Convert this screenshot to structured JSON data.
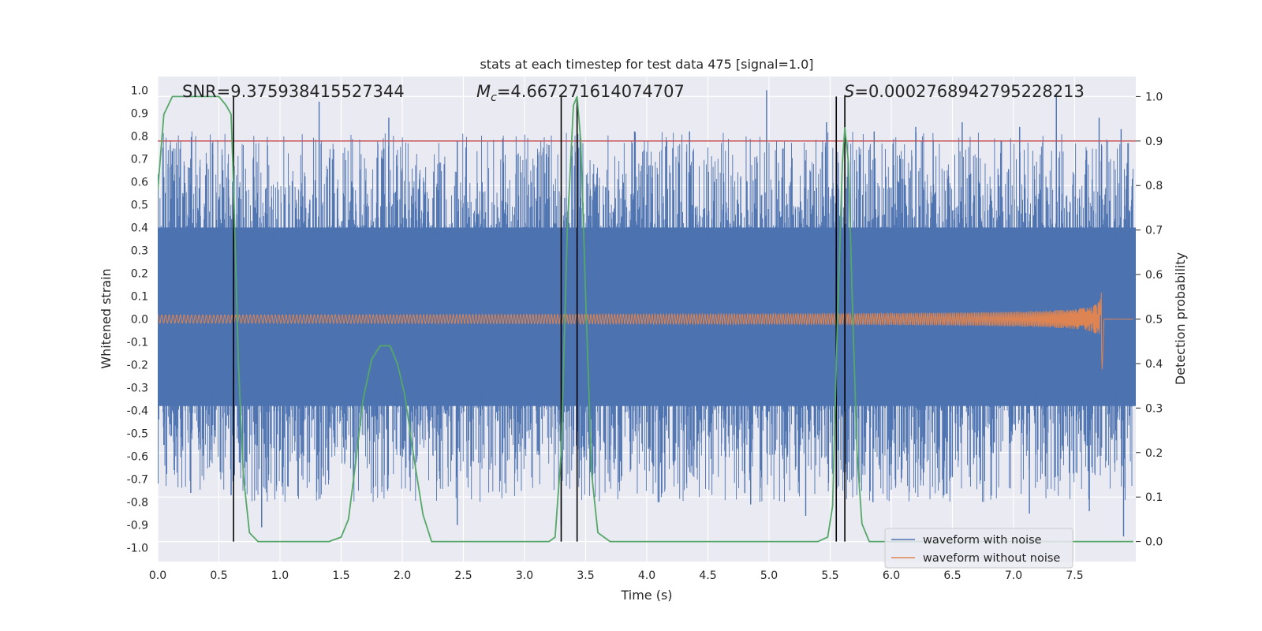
{
  "chart_data": {
    "type": "line",
    "title": "stats at each timestep for test data 475 [signal=1.0]",
    "xlabel": "Time (s)",
    "ylabel": "Whitened strain",
    "ylabel_right": "Detection probability",
    "xlim": [
      0.0,
      8.0
    ],
    "ylim": [
      -1.06,
      1.06
    ],
    "ylim_right": [
      -0.045,
      1.045
    ],
    "xticks": [
      0.0,
      0.5,
      1.0,
      1.5,
      2.0,
      2.5,
      3.0,
      3.5,
      4.0,
      4.5,
      5.0,
      5.5,
      6.0,
      6.5,
      7.0,
      7.5
    ],
    "xtick_labels": [
      "0.0",
      "0.5",
      "1.0",
      "1.5",
      "2.0",
      "2.5",
      "3.0",
      "3.5",
      "4.0",
      "4.5",
      "5.0",
      "5.5",
      "6.0",
      "6.5",
      "7.0",
      "7.5"
    ],
    "yticks": [
      -1.0,
      -0.9,
      -0.8,
      -0.7,
      -0.6,
      -0.5,
      -0.4,
      -0.3,
      -0.2,
      -0.1,
      0.0,
      0.1,
      0.2,
      0.3,
      0.4,
      0.5,
      0.6,
      0.7,
      0.8,
      0.9,
      1.0
    ],
    "ytick_labels": [
      "-1.0",
      "-0.9",
      "-0.8",
      "-0.7",
      "-0.6",
      "-0.5",
      "-0.4",
      "-0.3",
      "-0.2",
      "-0.1",
      "0.0",
      "0.1",
      "0.2",
      "0.3",
      "0.4",
      "0.5",
      "0.6",
      "0.7",
      "0.8",
      "0.9",
      "1.0"
    ],
    "yticks_right": [
      0.0,
      0.1,
      0.2,
      0.3,
      0.4,
      0.5,
      0.6,
      0.7,
      0.8,
      0.9,
      1.0
    ],
    "ytick_labels_right": [
      "0.0",
      "0.1",
      "0.2",
      "0.3",
      "0.4",
      "0.5",
      "0.6",
      "0.7",
      "0.8",
      "0.9",
      "1.0"
    ],
    "grid": true,
    "annotations": {
      "snr": "SNR=9.375938415527344",
      "mc_symbol": "M",
      "mc_sub": "c",
      "mc_value": "=4.667271614074707",
      "s_symbol": "S",
      "s_value": "=0.0002768942795228213"
    },
    "threshold": {
      "value": 0.9,
      "axis": "right",
      "color": "#c44e52"
    },
    "vertical_markers_x": [
      0.62,
      3.3,
      3.43,
      5.55,
      5.62
    ],
    "noisy_waveform": {
      "name": "waveform with noise",
      "color": "#4c72b0",
      "band_core": [
        -0.38,
        0.4
      ],
      "spike_peaks_x": [
        0.05,
        0.27,
        0.45,
        0.62,
        1.32,
        1.89,
        2.45,
        3.2,
        3.9,
        4.35,
        4.98,
        5.47,
        5.86,
        6.2,
        6.58,
        7.05,
        7.35,
        7.7,
        7.88
      ],
      "spike_peaks_y": [
        0.62,
        0.7,
        0.72,
        0.64,
        0.95,
        0.88,
        0.78,
        0.76,
        0.82,
        0.82,
        1.0,
        0.86,
        0.82,
        0.84,
        0.86,
        0.84,
        0.98,
        0.88,
        0.83
      ],
      "spike_troughs_x": [
        0.05,
        0.27,
        0.6,
        0.85,
        1.6,
        2.45,
        3.3,
        4.1,
        4.85,
        5.3,
        5.85,
        6.43,
        7.13,
        7.62,
        7.9
      ],
      "spike_troughs_y": [
        -0.55,
        -0.76,
        -0.77,
        -0.91,
        -0.71,
        -0.9,
        -0.9,
        -0.8,
        -0.81,
        -0.86,
        -0.8,
        -0.77,
        -0.85,
        -0.84,
        -0.95
      ]
    },
    "clean_waveform": {
      "name": "waveform without noise",
      "color": "#dd8452",
      "start_amplitude": 0.018,
      "merger_x": 7.72,
      "peak_amplitude": 0.21,
      "ringdown_end_x": 7.74
    },
    "detection_probability": {
      "name": "detection probability",
      "color": "#55a868",
      "x": [
        0.0,
        0.05,
        0.12,
        0.2,
        0.3,
        0.4,
        0.5,
        0.56,
        0.6,
        0.62,
        0.66,
        0.7,
        0.75,
        0.82,
        0.9,
        1.0,
        1.2,
        1.4,
        1.5,
        1.56,
        1.62,
        1.68,
        1.75,
        1.82,
        1.9,
        1.96,
        2.02,
        2.1,
        2.17,
        2.24,
        2.3,
        2.4,
        2.6,
        2.8,
        3.0,
        3.2,
        3.25,
        3.3,
        3.35,
        3.4,
        3.43,
        3.46,
        3.5,
        3.55,
        3.6,
        3.7,
        3.9,
        4.5,
        5.0,
        5.4,
        5.48,
        5.52,
        5.56,
        5.6,
        5.62,
        5.65,
        5.68,
        5.72,
        5.76,
        5.82,
        5.95,
        6.2,
        7.0,
        7.98
      ],
      "y": [
        0.79,
        0.96,
        1.0,
        1.0,
        1.0,
        1.0,
        1.0,
        0.98,
        0.96,
        0.8,
        0.4,
        0.15,
        0.02,
        0.0,
        0.0,
        0.0,
        0.0,
        0.0,
        0.01,
        0.05,
        0.18,
        0.32,
        0.41,
        0.44,
        0.44,
        0.4,
        0.33,
        0.18,
        0.06,
        0.0,
        0.0,
        0.0,
        0.0,
        0.0,
        0.0,
        0.0,
        0.01,
        0.2,
        0.7,
        0.98,
        1.0,
        0.9,
        0.55,
        0.15,
        0.02,
        0.0,
        0.0,
        0.0,
        0.0,
        0.0,
        0.01,
        0.08,
        0.5,
        0.85,
        0.93,
        0.85,
        0.55,
        0.2,
        0.04,
        0.0,
        0.0,
        0.0,
        0.0,
        0.0
      ]
    },
    "legend": {
      "location": "lower-right",
      "entries": [
        "waveform with noise",
        "waveform without noise"
      ]
    }
  }
}
